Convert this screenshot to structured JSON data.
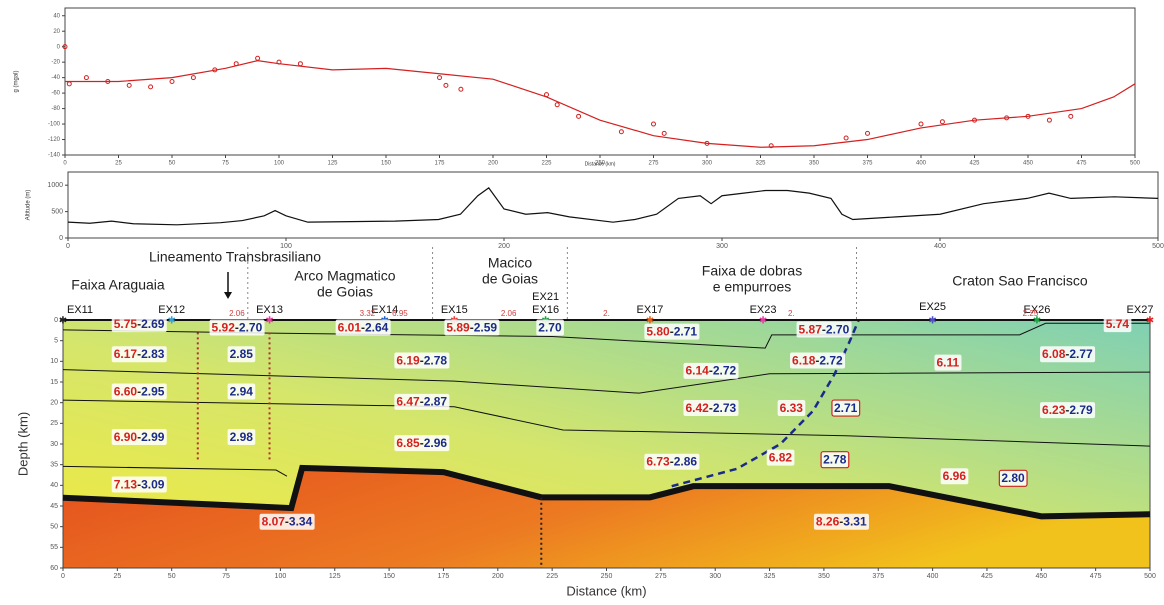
{
  "chart_data": [
    {
      "type": "line",
      "ylabel": "g (mgal)",
      "xlabel": "Distance (km)",
      "xlim": [
        0,
        500
      ],
      "xticks": [
        0,
        25,
        50,
        75,
        100,
        125,
        150,
        175,
        200,
        225,
        250,
        275,
        300,
        325,
        350,
        375,
        400,
        425,
        450,
        475,
        500
      ],
      "ylim": [
        -140,
        50
      ],
      "yticks": [
        -140,
        -120,
        -100,
        -80,
        -60,
        -40,
        -20,
        0,
        20,
        40
      ],
      "series": [
        {
          "style": "line",
          "color": "#d42020",
          "x": [
            0,
            25,
            50,
            75,
            90,
            100,
            125,
            150,
            175,
            200,
            225,
            250,
            275,
            300,
            325,
            350,
            375,
            400,
            425,
            450,
            475,
            490,
            500
          ],
          "values": [
            -45,
            -45,
            -40,
            -28,
            -18,
            -22,
            -30,
            -28,
            -35,
            -42,
            -65,
            -95,
            -115,
            -125,
            -130,
            -128,
            -120,
            -105,
            -95,
            -90,
            -80,
            -65,
            -48
          ]
        },
        {
          "style": "points",
          "color": "#d42020",
          "x": [
            0,
            2,
            10,
            20,
            30,
            40,
            50,
            60,
            70,
            80,
            90,
            100,
            110,
            175,
            178,
            185,
            225,
            230,
            240,
            260,
            275,
            280,
            300,
            330,
            365,
            375,
            400,
            410,
            425,
            440,
            450,
            460,
            470
          ],
          "values": [
            0,
            -48,
            -40,
            -45,
            -50,
            -52,
            -45,
            -40,
            -30,
            -22,
            -15,
            -20,
            -22,
            -40,
            -50,
            -55,
            -62,
            -75,
            -90,
            -110,
            -100,
            -112,
            -125,
            -128,
            -118,
            -112,
            -100,
            -97,
            -95,
            -92,
            -90,
            -95,
            -90
          ]
        }
      ]
    },
    {
      "type": "line",
      "ylabel": "Altitude (m)",
      "xlim": [
        0,
        500
      ],
      "xticks": [
        0,
        100,
        200,
        300,
        400,
        500
      ],
      "ylim": [
        0,
        1250
      ],
      "yticks": [
        0,
        500,
        1000
      ],
      "series": [
        {
          "style": "line",
          "color": "#111111",
          "x": [
            0,
            10,
            20,
            30,
            50,
            70,
            80,
            90,
            95,
            100,
            110,
            130,
            150,
            170,
            180,
            188,
            193,
            200,
            210,
            220,
            230,
            250,
            260,
            270,
            280,
            290,
            295,
            300,
            310,
            320,
            330,
            340,
            350,
            355,
            360,
            380,
            400,
            420,
            440,
            450,
            460,
            480,
            500
          ],
          "values": [
            300,
            280,
            320,
            270,
            250,
            290,
            330,
            420,
            520,
            420,
            300,
            310,
            320,
            350,
            450,
            800,
            950,
            550,
            450,
            480,
            400,
            300,
            350,
            450,
            750,
            800,
            650,
            800,
            850,
            900,
            900,
            850,
            750,
            450,
            350,
            400,
            450,
            650,
            750,
            850,
            750,
            780,
            750
          ]
        }
      ]
    },
    {
      "type": "section",
      "ylabel": "Depth (km)",
      "xlabel": "Distance (km)",
      "xlim": [
        0,
        500
      ],
      "xticks": [
        0,
        25,
        50,
        75,
        100,
        125,
        150,
        175,
        200,
        225,
        250,
        275,
        300,
        325,
        350,
        375,
        400,
        425,
        450,
        475,
        500
      ],
      "ylim": [
        60,
        0
      ],
      "yticks": [
        0,
        5,
        10,
        15,
        20,
        25,
        30,
        35,
        40,
        45,
        50,
        55,
        60
      ],
      "regions": [
        [
          "Faixa Araguaia"
        ],
        [
          "Lineamento Transbrasiliano"
        ],
        [
          "Arco Magmatico",
          "de Goias"
        ],
        [
          "Macico",
          "de Goias"
        ],
        [
          "Faixa de dobras",
          "e empurroes"
        ],
        [
          "Craton Sao Francisco"
        ]
      ],
      "stations": [
        "EX11",
        "EX12",
        "EX13",
        "EX14",
        "EX15",
        "EX21",
        "EX16",
        "EX17",
        "EX23",
        "EX25",
        "EX26",
        "EX27"
      ],
      "surface_labels": [
        "2.06",
        "3.32",
        "6.95",
        "2.06",
        "2.",
        "2.",
        "2.25"
      ],
      "boundaries": [
        {
          "style": "solid",
          "x": [
            0,
            100,
            225,
            323,
            326,
            440,
            452,
            500
          ],
          "values": [
            2.4,
            3.2,
            4,
            6.8,
            3.6,
            3.6,
            0.8,
            0.8
          ]
        },
        {
          "style": "solid",
          "x": [
            0,
            180,
            265,
            325,
            500
          ],
          "values": [
            12,
            14.8,
            17.7,
            13,
            12.6
          ]
        },
        {
          "style": "solid",
          "x": [
            0,
            180,
            230,
            360,
            500
          ],
          "values": [
            19.4,
            21,
            26.6,
            28,
            30.5
          ]
        },
        {
          "style": "solid",
          "x": [
            0,
            98,
            103
          ],
          "values": [
            35.4,
            36.3,
            37.8
          ]
        },
        {
          "style": "thick",
          "x": [
            0,
            105,
            110,
            175,
            220,
            270,
            290,
            380,
            450,
            500
          ],
          "values": [
            43,
            45.5,
            35.8,
            36.8,
            42.9,
            42.9,
            40.2,
            40.2,
            47.5,
            47
          ]
        },
        {
          "style": "dashed",
          "x": [
            280,
            310,
            330,
            345,
            355,
            362,
            366
          ],
          "values": [
            40.2,
            36,
            30,
            22,
            13,
            5,
            0
          ]
        }
      ],
      "labels": [
        {
          "vp": "5.75",
          "sep": "-",
          "vs": "2.69"
        },
        {
          "vp": "5.92",
          "sep": "-",
          "vs": "2.70"
        },
        {
          "vp": "6.01",
          "sep": "-",
          "vs": "2.64"
        },
        {
          "vp": "5.89",
          "sep": "-",
          "vs": "2.59"
        },
        {
          "vs": "2.70"
        },
        {
          "vp": "5.80",
          "sep": "-",
          "vs": "2.71"
        },
        {
          "vp": "5.87",
          "sep": "-",
          "vs": "2.70"
        },
        {
          "vp": "5.74"
        },
        {
          "vp": "6.17",
          "sep": "-",
          "vs": "2.83"
        },
        {
          "vs": "2.85"
        },
        {
          "vp": "6.19",
          "sep": "-",
          "vs": "2.78"
        },
        {
          "vp": "6.14",
          "sep": "-",
          "vs": "2.72"
        },
        {
          "vp": "6.18",
          "sep": "-",
          "vs": "2.72"
        },
        {
          "vp": "6.11"
        },
        {
          "vp": "6.08",
          "sep": "-",
          "vs": "2.77"
        },
        {
          "vp": "6.60",
          "sep": "-",
          "vs": "2.95"
        },
        {
          "vs": "2.94"
        },
        {
          "vp": "6.47",
          "sep": "-",
          "vs": "2.87"
        },
        {
          "vp": "6.42",
          "sep": "-",
          "vs": "2.73"
        },
        {
          "vp": "6.33"
        },
        {
          "vs": "2.71",
          "boxed": true
        },
        {
          "vp": "6.23",
          "sep": "-",
          "vs": "2.79"
        },
        {
          "vp": "6.90",
          "sep": "-",
          "vs": "2.99"
        },
        {
          "vs": "2.98"
        },
        {
          "vp": "6.85",
          "sep": "-",
          "vs": "2.96"
        },
        {
          "vp": "6.73",
          "sep": "-",
          "vs": "2.86"
        },
        {
          "vp": "6.82"
        },
        {
          "vs": "2.78",
          "boxed": true
        },
        {
          "vp": "6.96"
        },
        {
          "vs": "2.80",
          "boxed": true
        },
        {
          "vp": "7.13",
          "sep": "-",
          "vs": "3.09"
        },
        {
          "vp": "8.07",
          "sep": "-",
          "vs": "3.34"
        },
        {
          "vp": "8.26",
          "sep": "-",
          "vs": "3.31"
        }
      ]
    }
  ]
}
